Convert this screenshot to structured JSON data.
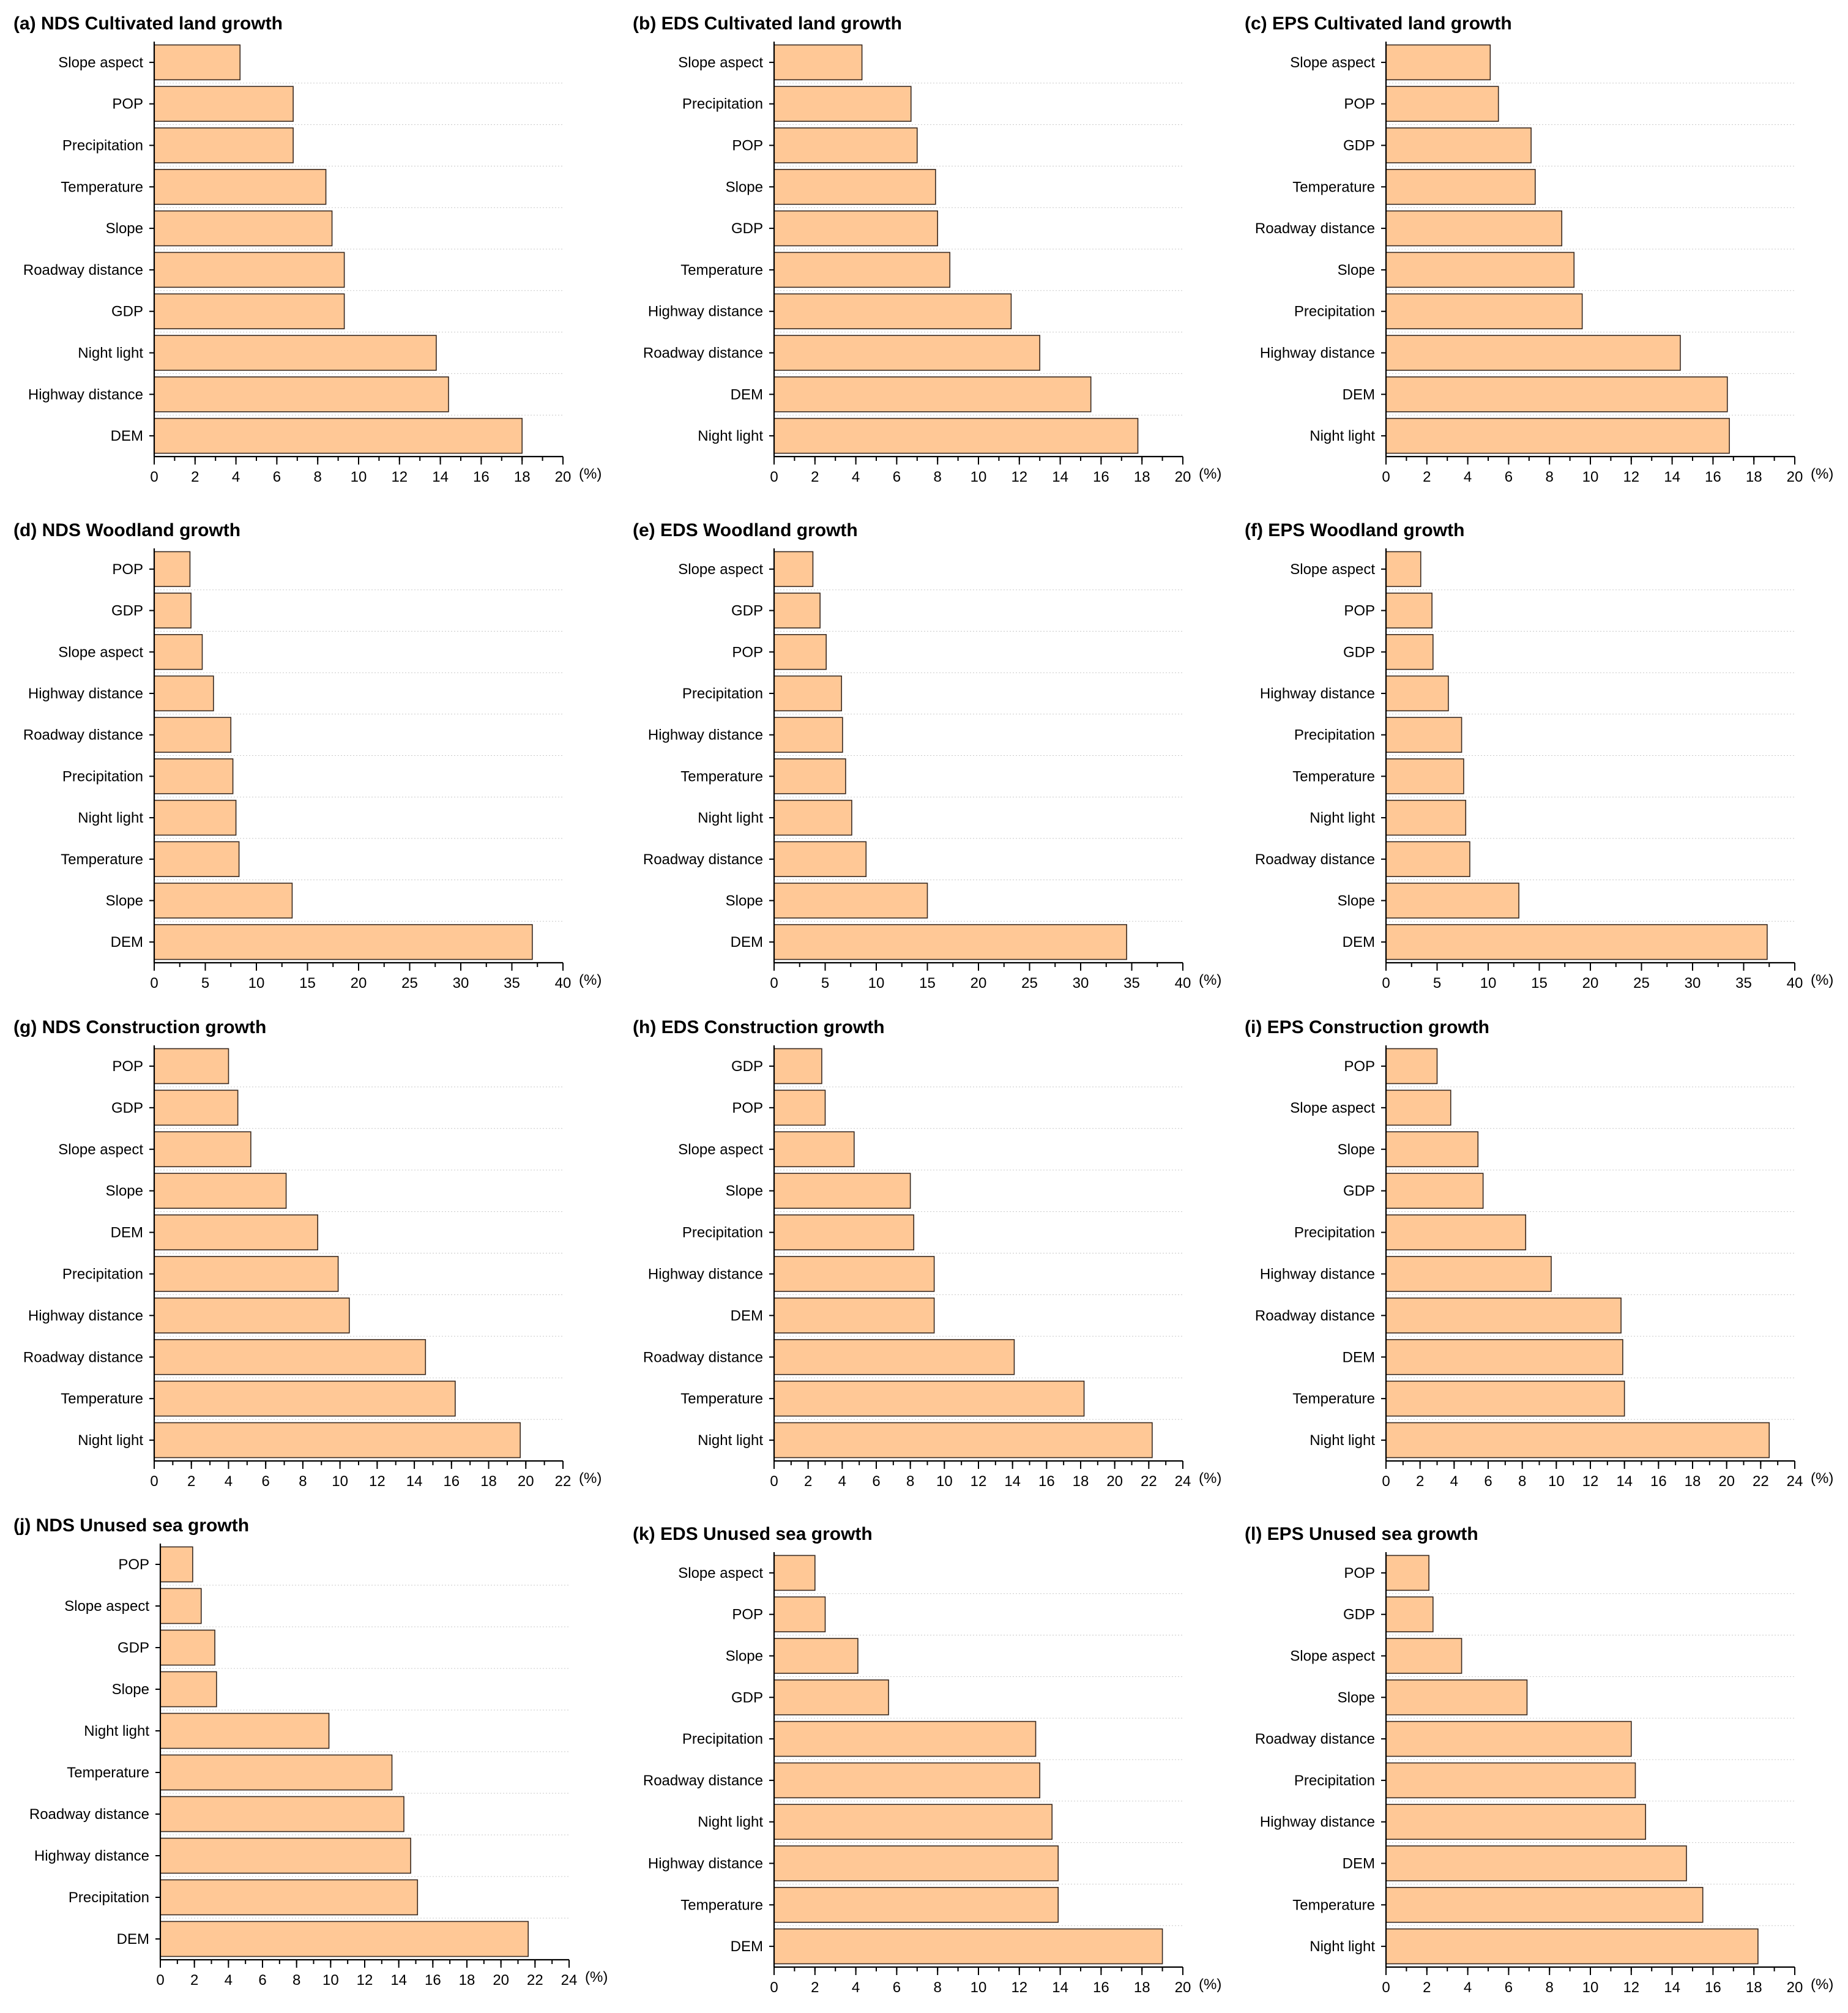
{
  "colors": {
    "bar_fill": "#FFC896",
    "bar_stroke": "#3a2a20",
    "grid": "#c8c8c8"
  },
  "chart_data": [
    {
      "id": "a",
      "type": "bar",
      "orientation": "horizontal",
      "title": "(a) NDS Cultivated land growth",
      "categories": [
        "Slope aspect",
        "POP",
        "Precipitation",
        "Temperature",
        "Slope",
        "Roadway distance",
        "GDP",
        "Night light",
        "Highway distance",
        "DEM"
      ],
      "values": [
        4.2,
        6.8,
        6.8,
        8.4,
        8.7,
        9.3,
        9.3,
        13.8,
        14.4,
        18.0
      ],
      "xlim": [
        0,
        20
      ],
      "ticks": [
        0,
        2,
        4,
        6,
        8,
        10,
        12,
        14,
        16,
        18,
        20
      ],
      "minor_step": 1,
      "xunit": "(%)"
    },
    {
      "id": "b",
      "type": "bar",
      "orientation": "horizontal",
      "title": "(b) EDS Cultivated land growth",
      "categories": [
        "Slope aspect",
        "Precipitation",
        "POP",
        "Slope",
        "GDP",
        "Temperature",
        "Highway distance",
        "Roadway distance",
        "DEM",
        "Night light"
      ],
      "values": [
        4.3,
        6.7,
        7.0,
        7.9,
        8.0,
        8.6,
        11.6,
        13.0,
        15.5,
        17.8
      ],
      "xlim": [
        0,
        20
      ],
      "ticks": [
        0,
        2,
        4,
        6,
        8,
        10,
        12,
        14,
        16,
        18,
        20
      ],
      "minor_step": 1,
      "xunit": "(%)"
    },
    {
      "id": "c",
      "type": "bar",
      "orientation": "horizontal",
      "title": "(c) EPS Cultivated land growth",
      "categories": [
        "Slope aspect",
        "POP",
        "GDP",
        "Temperature",
        "Roadway distance",
        "Slope",
        "Precipitation",
        "Highway distance",
        "DEM",
        "Night light"
      ],
      "values": [
        5.1,
        5.5,
        7.1,
        7.3,
        8.6,
        9.2,
        9.6,
        14.4,
        16.7,
        16.8
      ],
      "xlim": [
        0,
        20
      ],
      "ticks": [
        0,
        2,
        4,
        6,
        8,
        10,
        12,
        14,
        16,
        18,
        20
      ],
      "minor_step": 1,
      "xunit": "(%)"
    },
    {
      "id": "d",
      "type": "bar",
      "orientation": "horizontal",
      "title": "(d) NDS Woodland growth",
      "categories": [
        "POP",
        "GDP",
        "Slope aspect",
        "Highway distance",
        "Roadway distance",
        "Precipitation",
        "Night light",
        "Temperature",
        "Slope",
        "DEM"
      ],
      "values": [
        3.5,
        3.6,
        4.7,
        5.8,
        7.5,
        7.7,
        8.0,
        8.3,
        13.5,
        37.0
      ],
      "xlim": [
        0,
        40
      ],
      "ticks": [
        0,
        5,
        10,
        15,
        20,
        25,
        30,
        35,
        40
      ],
      "minor_step": 2.5,
      "xunit": "(%)"
    },
    {
      "id": "e",
      "type": "bar",
      "orientation": "horizontal",
      "title": "(e) EDS Woodland growth",
      "categories": [
        "Slope aspect",
        "GDP",
        "POP",
        "Precipitation",
        "Highway distance",
        "Temperature",
        "Night light",
        "Roadway distance",
        "Slope",
        "DEM"
      ],
      "values": [
        3.8,
        4.5,
        5.1,
        6.6,
        6.7,
        7.0,
        7.6,
        9.0,
        15.0,
        34.5
      ],
      "xlim": [
        0,
        40
      ],
      "ticks": [
        0,
        5,
        10,
        15,
        20,
        25,
        30,
        35,
        40
      ],
      "minor_step": 2.5,
      "xunit": "(%)"
    },
    {
      "id": "f",
      "type": "bar",
      "orientation": "horizontal",
      "title": "(f) EPS Woodland growth",
      "categories": [
        "Slope aspect",
        "POP",
        "GDP",
        "Highway distance",
        "Precipitation",
        "Temperature",
        "Night light",
        "Roadway distance",
        "Slope",
        "DEM"
      ],
      "values": [
        3.4,
        4.5,
        4.6,
        6.1,
        7.4,
        7.6,
        7.8,
        8.2,
        13.0,
        37.3
      ],
      "xlim": [
        0,
        40
      ],
      "ticks": [
        0,
        5,
        10,
        15,
        20,
        25,
        30,
        35,
        40
      ],
      "minor_step": 2.5,
      "xunit": "(%)"
    },
    {
      "id": "g",
      "type": "bar",
      "orientation": "horizontal",
      "title": "(g) NDS Construction growth",
      "categories": [
        "POP",
        "GDP",
        "Slope aspect",
        "Slope",
        "DEM",
        "Precipitation",
        "Highway distance",
        "Roadway distance",
        "Temperature",
        "Night light"
      ],
      "values": [
        4.0,
        4.5,
        5.2,
        7.1,
        8.8,
        9.9,
        10.5,
        14.6,
        16.2,
        19.7
      ],
      "xlim": [
        0,
        22
      ],
      "ticks": [
        0,
        2,
        4,
        6,
        8,
        10,
        12,
        14,
        16,
        18,
        20,
        22
      ],
      "minor_step": 1,
      "xunit": "(%)"
    },
    {
      "id": "h",
      "type": "bar",
      "orientation": "horizontal",
      "title": "(h) EDS Construction growth",
      "categories": [
        "GDP",
        "POP",
        "Slope aspect",
        "Slope",
        "Precipitation",
        "Highway distance",
        "DEM",
        "Roadway distance",
        "Temperature",
        "Night light"
      ],
      "values": [
        2.8,
        3.0,
        4.7,
        8.0,
        8.2,
        9.4,
        9.4,
        14.1,
        18.2,
        22.2
      ],
      "xlim": [
        0,
        24
      ],
      "ticks": [
        0,
        2,
        4,
        6,
        8,
        10,
        12,
        14,
        16,
        18,
        20,
        22,
        24
      ],
      "minor_step": 1,
      "xunit": "(%)"
    },
    {
      "id": "i",
      "type": "bar",
      "orientation": "horizontal",
      "title": "(i) EPS Construction growth",
      "categories": [
        "POP",
        "Slope aspect",
        "Slope",
        "GDP",
        "Precipitation",
        "Highway distance",
        "Roadway distance",
        "DEM",
        "Temperature",
        "Night light"
      ],
      "values": [
        3.0,
        3.8,
        5.4,
        5.7,
        8.2,
        9.7,
        13.8,
        13.9,
        14.0,
        22.5
      ],
      "xlim": [
        0,
        24
      ],
      "ticks": [
        0,
        2,
        4,
        6,
        8,
        10,
        12,
        14,
        16,
        18,
        20,
        22,
        24
      ],
      "minor_step": 1,
      "xunit": "(%)"
    },
    {
      "id": "j",
      "type": "bar",
      "orientation": "horizontal",
      "title": "(j) NDS Unused sea growth",
      "categories": [
        "POP",
        "Slope aspect",
        "GDP",
        "Slope",
        "Night light",
        "Temperature",
        "Roadway distance",
        "Highway distance",
        "Precipitation",
        "DEM"
      ],
      "values": [
        1.9,
        2.4,
        3.2,
        3.3,
        9.9,
        13.6,
        14.3,
        14.7,
        15.1,
        21.6
      ],
      "xlim": [
        0,
        24
      ],
      "ticks": [
        0,
        2,
        4,
        6,
        8,
        10,
        12,
        14,
        16,
        18,
        20,
        22,
        24
      ],
      "minor_step": 1,
      "xunit": "(%)"
    },
    {
      "id": "k",
      "type": "bar",
      "orientation": "horizontal",
      "title": "(k) EDS Unused sea growth",
      "categories": [
        "Slope aspect",
        "POP",
        "Slope",
        "GDP",
        "Precipitation",
        "Roadway distance",
        "Night light",
        "Highway distance",
        "Temperature",
        "DEM"
      ],
      "values": [
        2.0,
        2.5,
        4.1,
        5.6,
        12.8,
        13.0,
        13.6,
        13.9,
        13.9,
        19.0
      ],
      "xlim": [
        0,
        20
      ],
      "ticks": [
        0,
        2,
        4,
        6,
        8,
        10,
        12,
        14,
        16,
        18,
        20
      ],
      "minor_step": 1,
      "xunit": "(%)"
    },
    {
      "id": "l",
      "type": "bar",
      "orientation": "horizontal",
      "title": "(l) EPS Unused sea growth",
      "categories": [
        "POP",
        "GDP",
        "Slope aspect",
        "Slope",
        "Roadway distance",
        "Precipitation",
        "Highway distance",
        "DEM",
        "Temperature",
        "Night light"
      ],
      "values": [
        2.1,
        2.3,
        3.7,
        6.9,
        12.0,
        12.2,
        12.7,
        14.7,
        15.5,
        18.2
      ],
      "xlim": [
        0,
        20
      ],
      "ticks": [
        0,
        2,
        4,
        6,
        8,
        10,
        12,
        14,
        16,
        18,
        20
      ],
      "minor_step": 1,
      "xunit": "(%)"
    }
  ]
}
